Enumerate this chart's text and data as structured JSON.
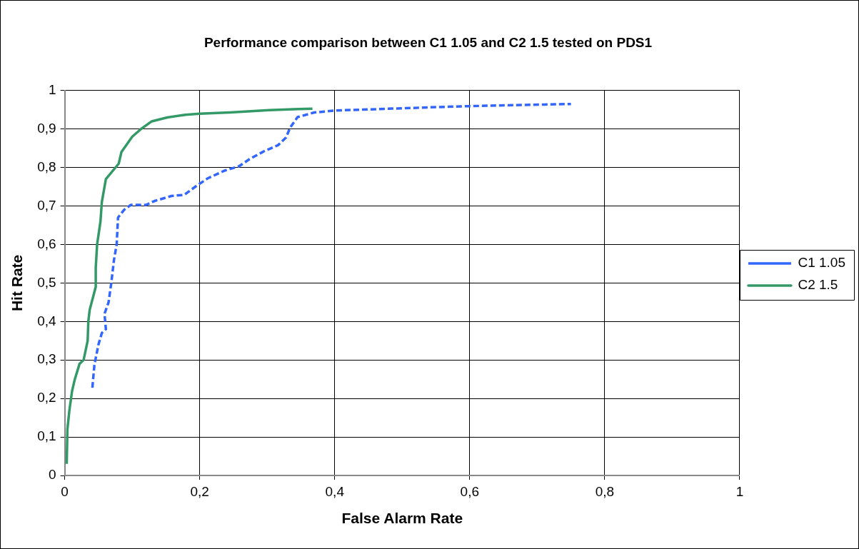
{
  "chart_data": {
    "type": "line",
    "title": "Performance comparison between C1 1.05 and C2 1.5 tested on PDS1",
    "xlabel": "False Alarm Rate",
    "ylabel": "Hit Rate",
    "xlim": [
      0,
      1
    ],
    "xticks": [
      0,
      {
        "value": 0.2,
        "label": "0,2"
      },
      {
        "value": 0.4,
        "label": "0,4"
      },
      {
        "value": 0.6,
        "label": "0,6"
      },
      {
        "value": 0.8,
        "label": "0,8"
      },
      1
    ],
    "ylim": [
      0,
      1
    ],
    "yticks": [
      0,
      {
        "value": 0.1,
        "label": "0,1"
      },
      {
        "value": 0.2,
        "label": "0,2"
      },
      {
        "value": 0.3,
        "label": "0,3"
      },
      {
        "value": 0.4,
        "label": "0,4"
      },
      {
        "value": 0.5,
        "label": "0,5"
      },
      {
        "value": 0.6,
        "label": "0,6"
      },
      {
        "value": 0.7,
        "label": "0,7"
      },
      {
        "value": 0.8,
        "label": "0,8"
      },
      {
        "value": 0.9,
        "label": "0,9"
      },
      1
    ],
    "grid": true,
    "legend": "right",
    "marker": "none",
    "series": [
      {
        "name": "C1 1.05",
        "color": "#3366ff",
        "line_style": "dashed",
        "x": [
          0.041,
          0.044,
          0.05,
          0.055,
          0.061,
          0.059,
          0.065,
          0.069,
          0.073,
          0.077,
          0.079,
          0.088,
          0.098,
          0.121,
          0.133,
          0.158,
          0.177,
          0.195,
          0.212,
          0.237,
          0.258,
          0.274,
          0.295,
          0.316,
          0.328,
          0.334,
          0.345,
          0.37,
          0.4,
          0.587,
          0.75
        ],
        "values": [
          0.228,
          0.287,
          0.34,
          0.37,
          0.38,
          0.42,
          0.45,
          0.5,
          0.56,
          0.6,
          0.67,
          0.69,
          0.703,
          0.703,
          0.713,
          0.726,
          0.729,
          0.752,
          0.772,
          0.792,
          0.803,
          0.822,
          0.842,
          0.858,
          0.878,
          0.904,
          0.931,
          0.943,
          0.948,
          0.959,
          0.965
        ]
      },
      {
        "name": "C2 1.5",
        "color": "#339966",
        "line_style": "solid",
        "x": [
          0.003,
          0.004,
          0.007,
          0.011,
          0.015,
          0.022,
          0.028,
          0.034,
          0.035,
          0.037,
          0.046,
          0.046,
          0.048,
          0.053,
          0.055,
          0.061,
          0.08,
          0.084,
          0.1,
          0.113,
          0.129,
          0.152,
          0.179,
          0.2,
          0.245,
          0.303,
          0.346,
          0.367
        ],
        "values": [
          0.03,
          0.12,
          0.17,
          0.22,
          0.25,
          0.29,
          0.3,
          0.35,
          0.4,
          0.43,
          0.49,
          0.54,
          0.6,
          0.66,
          0.71,
          0.77,
          0.81,
          0.84,
          0.88,
          0.9,
          0.92,
          0.93,
          0.937,
          0.94,
          0.943,
          0.949,
          0.952,
          0.953
        ]
      }
    ]
  }
}
